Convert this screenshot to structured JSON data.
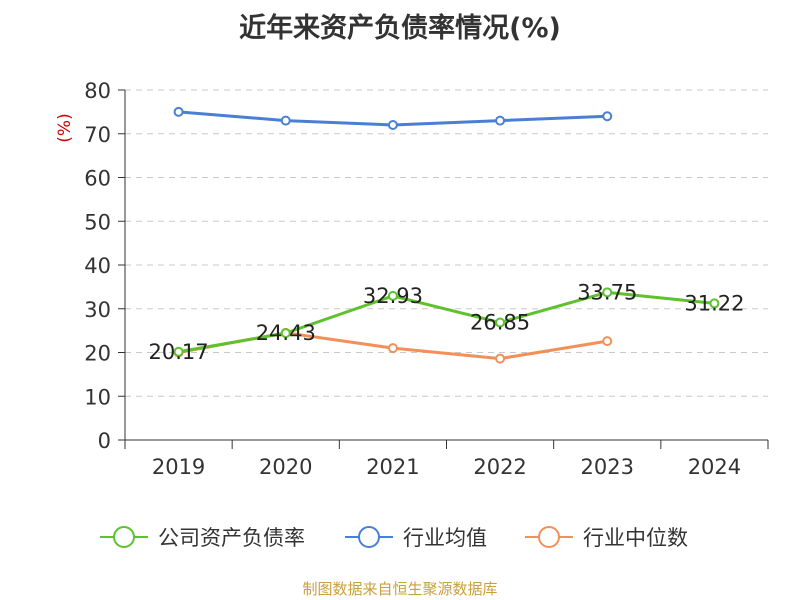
{
  "chart_data": {
    "type": "line",
    "title": "近年来资产负债率情况(%)",
    "ylabel": "(%)",
    "ylim": [
      0,
      80
    ],
    "yticks": [
      0,
      10,
      20,
      30,
      40,
      50,
      60,
      70,
      80
    ],
    "categories": [
      "2019",
      "2020",
      "2021",
      "2022",
      "2023",
      "2024"
    ],
    "grid": true,
    "legend_position": "bottom",
    "series": [
      {
        "name": "公司资产负债率",
        "color": "#5ec12d",
        "values": [
          20.17,
          24.43,
          32.93,
          26.85,
          33.75,
          31.22
        ],
        "show_labels": true
      },
      {
        "name": "行业均值",
        "color": "#4a7fd6",
        "values": [
          75,
          73,
          72,
          73,
          74,
          null
        ],
        "show_labels": false
      },
      {
        "name": "行业中位数",
        "color": "#f3905a",
        "values": [
          20,
          24.5,
          21,
          18.6,
          22.6,
          null
        ],
        "show_labels": false
      }
    ]
  },
  "source": "制图数据来自恒生聚源数据库"
}
